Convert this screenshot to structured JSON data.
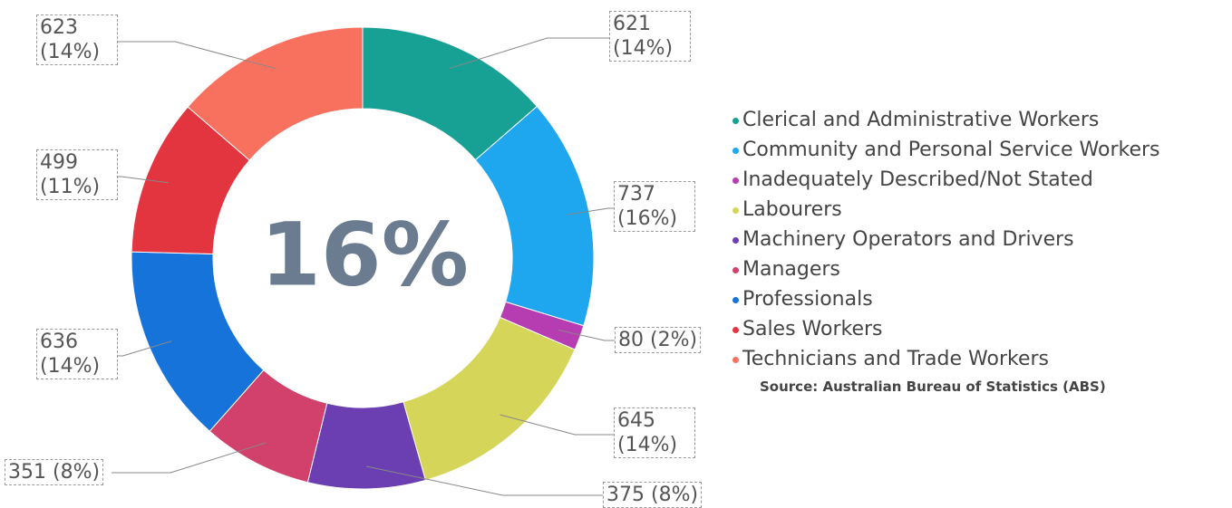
{
  "chart_data": {
    "type": "donut",
    "center_label": "16%",
    "categories": [
      "Clerical and Administrative Workers",
      "Community and Personal Service Workers",
      "Inadequately Described/Not Stated",
      "Labourers",
      "Machinery Operators and Drivers",
      "Managers",
      "Professionals",
      "Sales Workers",
      "Technicians and Trade Workers"
    ],
    "values": [
      621,
      737,
      80,
      645,
      375,
      351,
      636,
      499,
      623
    ],
    "value_labels": [
      "621 (14%)",
      "737 (16%)",
      "80 (2%)",
      "645 (14%)",
      "375 (8%)",
      "351 (8%)",
      "636 (14%)",
      "499 (11%)",
      "623 (14%)"
    ],
    "colors": [
      "#17a094",
      "#1ea6ee",
      "#b63cb2",
      "#d5d55a",
      "#6b3fb1",
      "#d2406c",
      "#1673d9",
      "#e3353f",
      "#f7715e"
    ],
    "source": "Source: Australian Bureau of Statistics (ABS)",
    "legend": "right"
  }
}
